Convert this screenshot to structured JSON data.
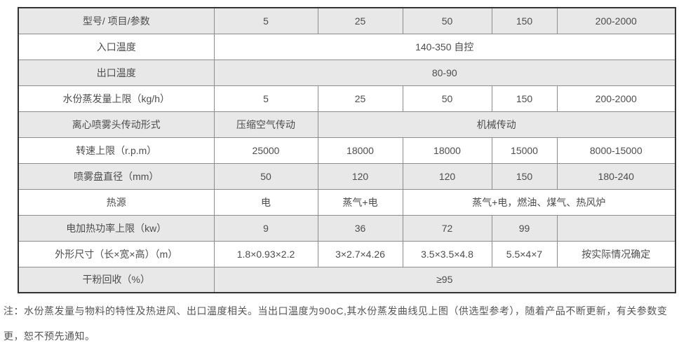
{
  "table": {
    "rows": [
      {
        "label": "型号/ 项目/参数",
        "shaded": true,
        "cells": [
          {
            "text": "5",
            "span": 1
          },
          {
            "text": "25",
            "span": 1
          },
          {
            "text": "50",
            "span": 1
          },
          {
            "text": "150",
            "span": 1
          },
          {
            "text": "200-2000",
            "span": 1
          }
        ]
      },
      {
        "label": "入口温度",
        "shaded": false,
        "cells": [
          {
            "text": "140-350 自控",
            "span": 5
          }
        ]
      },
      {
        "label": "出口温度",
        "shaded": true,
        "cells": [
          {
            "text": "80-90",
            "span": 5
          }
        ]
      },
      {
        "label": "水份蒸发量上限（kg/h）",
        "shaded": false,
        "cells": [
          {
            "text": "5",
            "span": 1
          },
          {
            "text": "25",
            "span": 1
          },
          {
            "text": "50",
            "span": 1
          },
          {
            "text": "150",
            "span": 1
          },
          {
            "text": "200-2000",
            "span": 1
          }
        ]
      },
      {
        "label": "离心喷雾头传动形式",
        "shaded": true,
        "cells": [
          {
            "text": "压缩空气传动",
            "span": 1
          },
          {
            "text": "机械传动",
            "span": 4
          }
        ]
      },
      {
        "label": "转速上限（r.p.m）",
        "shaded": false,
        "cells": [
          {
            "text": "25000",
            "span": 1
          },
          {
            "text": "18000",
            "span": 1
          },
          {
            "text": "18000",
            "span": 1
          },
          {
            "text": "15000",
            "span": 1
          },
          {
            "text": "8000-15000",
            "span": 1
          }
        ]
      },
      {
        "label": "喷雾盘直径（mm）",
        "shaded": true,
        "cells": [
          {
            "text": "50",
            "span": 1
          },
          {
            "text": "120",
            "span": 1
          },
          {
            "text": "120",
            "span": 1
          },
          {
            "text": "150",
            "span": 1
          },
          {
            "text": "180-240",
            "span": 1
          }
        ]
      },
      {
        "label": "热源",
        "shaded": false,
        "cells": [
          {
            "text": "电",
            "span": 1
          },
          {
            "text": "蒸气+电",
            "span": 1
          },
          {
            "text": "蒸气+电，燃油、煤气、热风炉",
            "span": 3
          }
        ]
      },
      {
        "label": "电加热功率上限（kw）",
        "shaded": true,
        "cells": [
          {
            "text": "9",
            "span": 1
          },
          {
            "text": "36",
            "span": 1
          },
          {
            "text": "72",
            "span": 1
          },
          {
            "text": "99",
            "span": 1
          },
          {
            "text": "",
            "span": 1
          }
        ]
      },
      {
        "label": "外形尺寸（长×宽×高）（m）",
        "shaded": false,
        "cells": [
          {
            "text": "1.8×0.93×2.2",
            "span": 1
          },
          {
            "text": "3×2.7×4.26",
            "span": 1
          },
          {
            "text": "3.5×3.5×4.8",
            "span": 1
          },
          {
            "text": "5.5×4×7",
            "span": 1
          },
          {
            "text": "按实际情况确定",
            "span": 1
          }
        ]
      },
      {
        "label": "干粉回收（%）",
        "shaded": true,
        "cells": [
          {
            "text": "≥95",
            "span": 5
          }
        ]
      }
    ]
  },
  "note": "注：水份蒸发量与物料的特性及热进风、出口温度相关。当出口温度为90oC,其水份蒸发曲线见上图（供选型参考），随着产品不断更新，有关参数变更，恕不预先通知。",
  "colors": {
    "row_shade": "#e8e8e8",
    "outer_border": "#333333",
    "inner_border": "#8c8c8c",
    "text": "#4d4d4d"
  }
}
